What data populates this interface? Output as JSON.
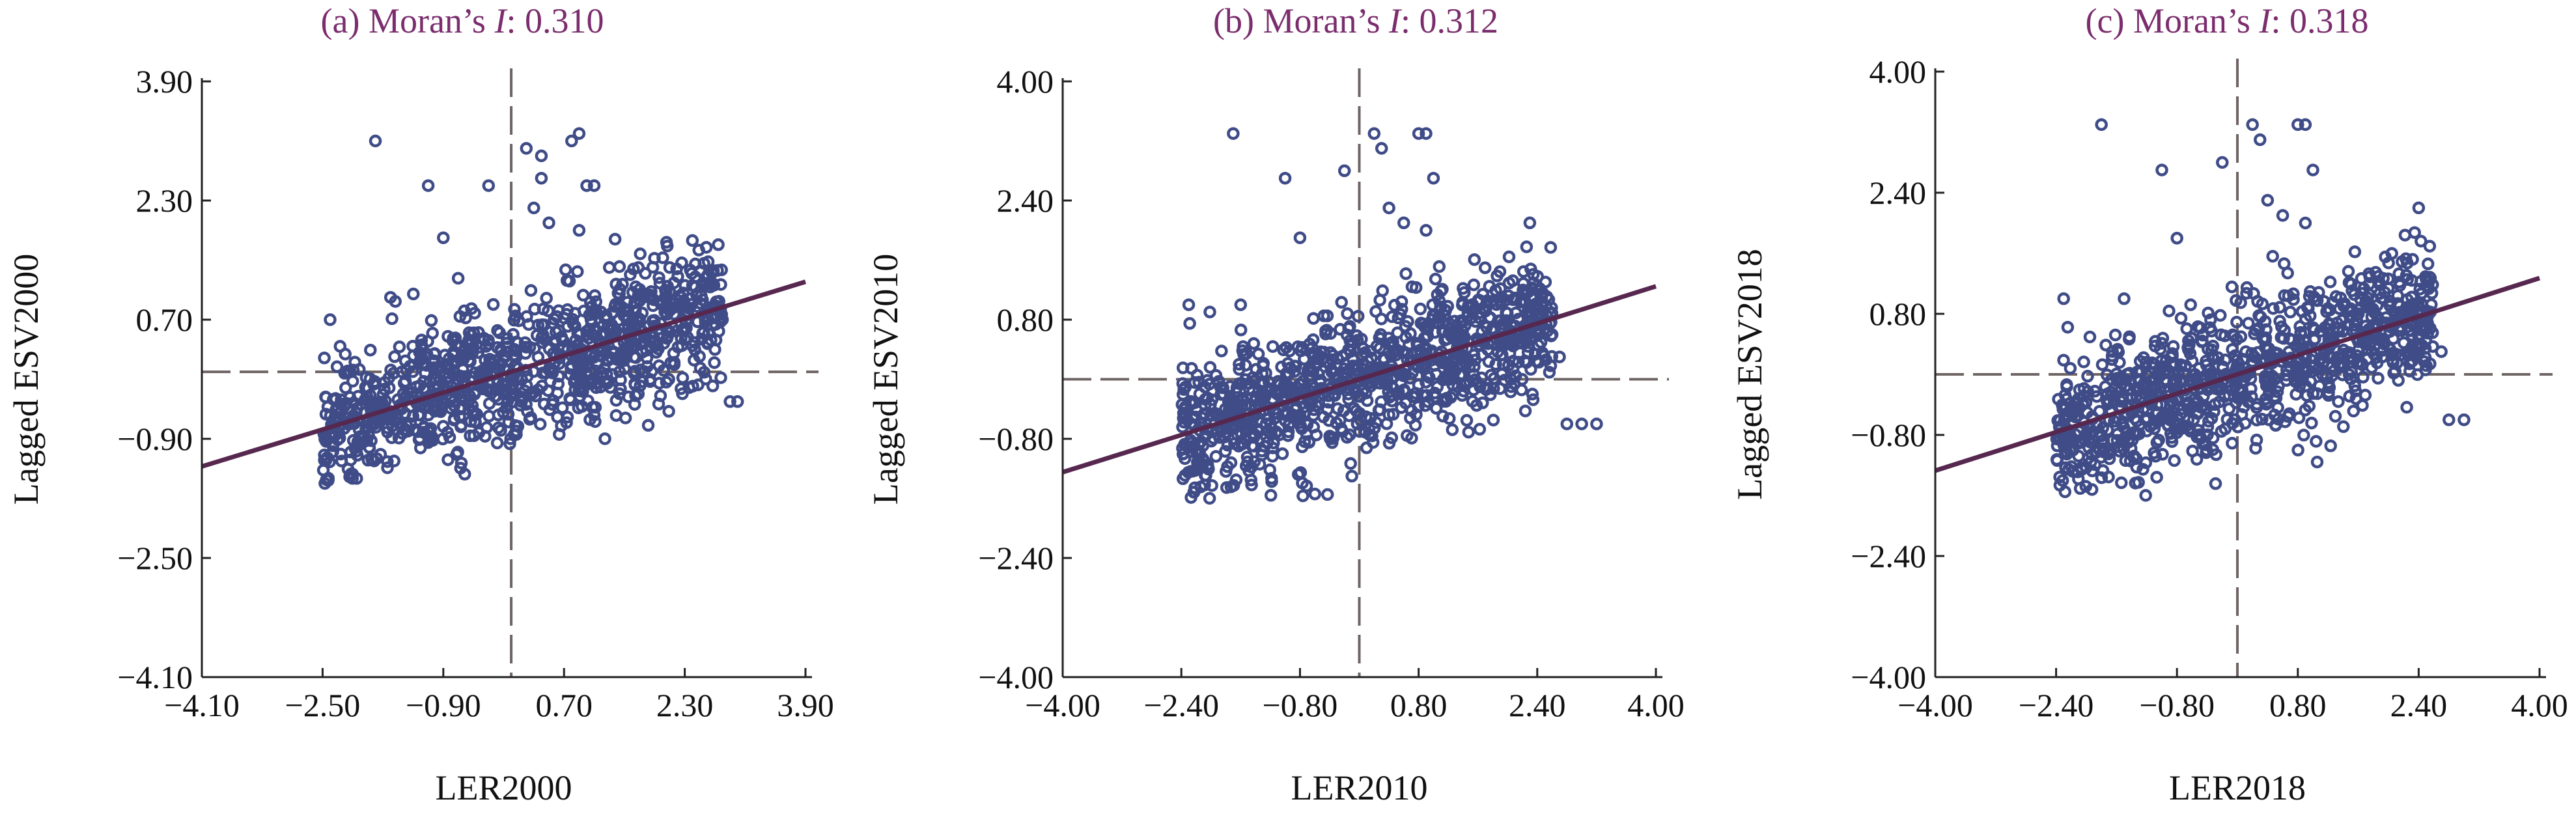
{
  "chart_data": [
    {
      "type": "scatter",
      "panel": "(a)",
      "title": "Moran’s I: 0.310",
      "title_prefix": "(a) Moran’s ",
      "title_italic": "I",
      "title_suffix": ": 0.310",
      "xlabel": "LER2000",
      "ylabel": "Lagged ESV2000",
      "xlim": [
        -4.1,
        3.9
      ],
      "ylim": [
        -4.1,
        3.9
      ],
      "xticks": [
        -4.1,
        -2.5,
        -0.9,
        0.7,
        2.3,
        3.9
      ],
      "yticks": [
        -4.1,
        -2.5,
        -0.9,
        0.7,
        2.3,
        3.9
      ],
      "xtick_labels": [
        "−4.10",
        "−2.50",
        "−0.90",
        "0.70",
        "2.30",
        "3.90"
      ],
      "ytick_labels": [
        "−4.10",
        "−2.50",
        "−0.90",
        "0.70",
        "2.30",
        "3.90"
      ],
      "reference_lines": {
        "x": 0,
        "y": 0
      },
      "regression": {
        "slope": 0.31,
        "intercept": 0.0
      },
      "cluster": {
        "x_range": [
          -2.5,
          2.8
        ],
        "y_range": [
          -1.5,
          1.8
        ],
        "approx_count": 1000
      },
      "outliers": [
        [
          -1.8,
          3.1
        ],
        [
          -1.1,
          2.5
        ],
        [
          -0.3,
          2.5
        ],
        [
          0.2,
          3.0
        ],
        [
          0.4,
          2.9
        ],
        [
          0.4,
          2.6
        ],
        [
          0.8,
          3.1
        ],
        [
          0.9,
          3.2
        ],
        [
          1.0,
          2.5
        ],
        [
          1.1,
          2.5
        ],
        [
          -0.9,
          1.8
        ],
        [
          0.3,
          2.2
        ],
        [
          0.5,
          2.0
        ],
        [
          0.9,
          1.9
        ],
        [
          1.3,
          1.4
        ],
        [
          2.1,
          1.4
        ],
        [
          2.7,
          0.3
        ],
        [
          2.8,
          0.7
        ],
        [
          2.9,
          -0.4
        ],
        [
          3.0,
          -0.4
        ],
        [
          -2.4,
          0.7
        ],
        [
          -1.6,
          1.0
        ]
      ]
    },
    {
      "type": "scatter",
      "panel": "(b)",
      "title": "Moran’s I: 0.312",
      "title_prefix": "(b) Moran’s ",
      "title_italic": "I",
      "title_suffix": ": 0.312",
      "xlabel": "LER2010",
      "ylabel": "Lagged ESV2010",
      "xlim": [
        -4.0,
        4.0
      ],
      "ylim": [
        -4.0,
        4.0
      ],
      "xticks": [
        -4.0,
        -2.4,
        -0.8,
        0.8,
        2.4,
        4.0
      ],
      "yticks": [
        -4.0,
        -2.4,
        -0.8,
        0.8,
        2.4,
        4.0
      ],
      "xtick_labels": [
        "−4.00",
        "−2.40",
        "−0.80",
        "0.80",
        "2.40",
        "4.00"
      ],
      "ytick_labels": [
        "−4.00",
        "−2.40",
        "−0.80",
        "0.80",
        "2.40",
        "4.00"
      ],
      "reference_lines": {
        "x": 0,
        "y": 0
      },
      "regression": {
        "slope": 0.312,
        "intercept": 0.0
      },
      "cluster": {
        "x_range": [
          -2.4,
          2.6
        ],
        "y_range": [
          -1.6,
          1.9
        ],
        "approx_count": 1000
      },
      "outliers": [
        [
          -1.7,
          3.3
        ],
        [
          -1.0,
          2.7
        ],
        [
          -0.2,
          2.8
        ],
        [
          0.2,
          3.3
        ],
        [
          0.3,
          3.1
        ],
        [
          0.8,
          3.3
        ],
        [
          0.9,
          3.3
        ],
        [
          1.0,
          2.7
        ],
        [
          -0.8,
          1.9
        ],
        [
          0.4,
          2.3
        ],
        [
          0.6,
          2.1
        ],
        [
          0.9,
          2.0
        ],
        [
          2.3,
          2.1
        ],
        [
          2.6,
          0.6
        ],
        [
          2.7,
          0.3
        ],
        [
          2.8,
          -0.6
        ],
        [
          3.0,
          -0.6
        ],
        [
          3.2,
          -0.6
        ],
        [
          -2.3,
          1.0
        ],
        [
          -1.6,
          1.0
        ]
      ]
    },
    {
      "type": "scatter",
      "panel": "(c)",
      "title": "Moran’s I: 0.318",
      "title_prefix": "(c) Moran’s ",
      "title_italic": "I",
      "title_suffix": ": 0.318",
      "xlabel": "LER2018",
      "ylabel": "Lagged ESV2018",
      "xlim": [
        -4.0,
        4.0
      ],
      "ylim": [
        -4.0,
        4.0
      ],
      "xticks": [
        -4.0,
        -2.4,
        -0.8,
        0.8,
        2.4,
        4.0
      ],
      "yticks": [
        -4.0,
        -2.4,
        -0.8,
        0.8,
        2.4,
        4.0
      ],
      "xtick_labels": [
        "−4.00",
        "−2.40",
        "−0.80",
        "0.80",
        "2.40",
        "4.00"
      ],
      "ytick_labels": [
        "−4.00",
        "−2.40",
        "−0.80",
        "0.80",
        "2.40",
        "4.00"
      ],
      "reference_lines": {
        "x": 0,
        "y": 0
      },
      "regression": {
        "slope": 0.318,
        "intercept": 0.0
      },
      "cluster": {
        "x_range": [
          -2.4,
          2.6
        ],
        "y_range": [
          -1.6,
          1.9
        ],
        "approx_count": 1000
      },
      "outliers": [
        [
          -1.8,
          3.3
        ],
        [
          -1.0,
          2.7
        ],
        [
          -0.2,
          2.8
        ],
        [
          0.2,
          3.3
        ],
        [
          0.3,
          3.1
        ],
        [
          0.8,
          3.3
        ],
        [
          0.9,
          3.3
        ],
        [
          1.0,
          2.7
        ],
        [
          -0.8,
          1.8
        ],
        [
          0.4,
          2.3
        ],
        [
          0.6,
          2.1
        ],
        [
          0.9,
          2.0
        ],
        [
          2.4,
          2.2
        ],
        [
          2.5,
          0.6
        ],
        [
          2.7,
          0.3
        ],
        [
          2.8,
          -0.6
        ],
        [
          3.0,
          -0.6
        ],
        [
          -2.3,
          1.0
        ],
        [
          -1.5,
          1.0
        ]
      ]
    }
  ],
  "colors": {
    "title": "#7b2d6e",
    "points": "#3f4c87",
    "fit_line": "#57284f",
    "reference_lines": "#6f6464",
    "axes": "#222222"
  }
}
